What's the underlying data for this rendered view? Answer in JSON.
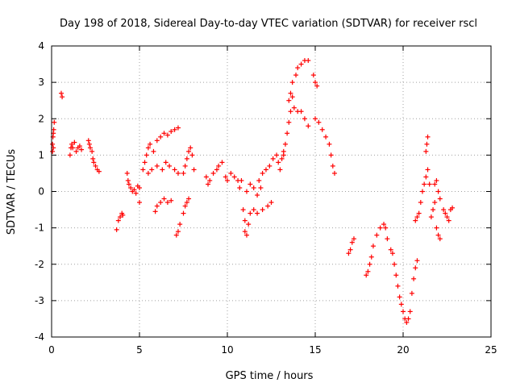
{
  "chart_data": {
    "type": "scatter",
    "title": "Day 198 of 2018, Sidereal Day-to-day VTEC variation (SDTVAR) for receiver rscl",
    "xlabel": "GPS time / hours",
    "ylabel": "SDTVAR / TECUs",
    "xlim": [
      0,
      25
    ],
    "ylim": [
      -4,
      4
    ],
    "xticks": [
      0,
      5,
      10,
      15,
      20,
      25
    ],
    "yticks": [
      -4,
      -3,
      -2,
      -1,
      0,
      1,
      2,
      3,
      4
    ],
    "grid": true,
    "marker": "+",
    "series": [
      {
        "name": "SDTVAR",
        "color": "#ff0000",
        "points": [
          [
            0.05,
            1.1
          ],
          [
            0.05,
            1.3
          ],
          [
            0.08,
            1.5
          ],
          [
            0.1,
            1.6
          ],
          [
            0.12,
            1.7
          ],
          [
            0.15,
            1.9
          ],
          [
            0.1,
            1.2
          ],
          [
            0.55,
            2.7
          ],
          [
            0.6,
            2.6
          ],
          [
            1.05,
            1.0
          ],
          [
            1.1,
            1.2
          ],
          [
            1.15,
            1.3
          ],
          [
            1.2,
            1.2
          ],
          [
            1.3,
            1.35
          ],
          [
            1.4,
            1.1
          ],
          [
            1.5,
            1.2
          ],
          [
            1.6,
            1.25
          ],
          [
            1.7,
            1.15
          ],
          [
            2.1,
            1.4
          ],
          [
            2.15,
            1.3
          ],
          [
            2.2,
            1.2
          ],
          [
            2.3,
            1.1
          ],
          [
            2.35,
            0.9
          ],
          [
            2.4,
            0.8
          ],
          [
            2.5,
            0.7
          ],
          [
            2.6,
            0.6
          ],
          [
            2.7,
            0.55
          ],
          [
            3.7,
            -1.05
          ],
          [
            3.8,
            -0.8
          ],
          [
            3.9,
            -0.7
          ],
          [
            4.0,
            -0.6
          ],
          [
            4.05,
            -0.65
          ],
          [
            4.3,
            0.5
          ],
          [
            4.35,
            0.3
          ],
          [
            4.4,
            0.2
          ],
          [
            4.5,
            0.1
          ],
          [
            4.6,
            0.0
          ],
          [
            4.7,
            0.05
          ],
          [
            4.8,
            -0.05
          ],
          [
            4.9,
            0.15
          ],
          [
            5.0,
            0.1
          ],
          [
            5.0,
            -0.3
          ],
          [
            5.2,
            0.6
          ],
          [
            5.3,
            0.8
          ],
          [
            5.4,
            1.0
          ],
          [
            5.5,
            1.2
          ],
          [
            5.6,
            1.3
          ],
          [
            5.8,
            1.1
          ],
          [
            6.0,
            1.4
          ],
          [
            6.2,
            1.5
          ],
          [
            6.4,
            1.6
          ],
          [
            6.6,
            1.55
          ],
          [
            6.8,
            1.65
          ],
          [
            7.0,
            1.7
          ],
          [
            7.2,
            1.75
          ],
          [
            5.5,
            0.5
          ],
          [
            5.7,
            0.6
          ],
          [
            6.0,
            0.7
          ],
          [
            6.3,
            0.6
          ],
          [
            6.5,
            0.8
          ],
          [
            6.7,
            0.7
          ],
          [
            7.0,
            0.6
          ],
          [
            7.2,
            0.5
          ],
          [
            5.9,
            -0.55
          ],
          [
            6.0,
            -0.4
          ],
          [
            6.2,
            -0.3
          ],
          [
            6.4,
            -0.2
          ],
          [
            6.6,
            -0.3
          ],
          [
            6.8,
            -0.25
          ],
          [
            7.1,
            -1.2
          ],
          [
            7.2,
            -1.1
          ],
          [
            7.3,
            -0.9
          ],
          [
            7.5,
            -0.6
          ],
          [
            7.6,
            -0.4
          ],
          [
            7.7,
            -0.3
          ],
          [
            7.8,
            -0.2
          ],
          [
            7.5,
            0.5
          ],
          [
            7.6,
            0.7
          ],
          [
            7.7,
            0.9
          ],
          [
            7.8,
            1.1
          ],
          [
            7.9,
            1.2
          ],
          [
            8.0,
            1.0
          ],
          [
            8.1,
            0.6
          ],
          [
            8.8,
            0.4
          ],
          [
            8.9,
            0.2
          ],
          [
            9.0,
            0.3
          ],
          [
            9.2,
            0.5
          ],
          [
            9.4,
            0.6
          ],
          [
            9.5,
            0.7
          ],
          [
            9.7,
            0.8
          ],
          [
            9.9,
            0.4
          ],
          [
            10.0,
            0.3
          ],
          [
            10.2,
            0.5
          ],
          [
            10.4,
            0.4
          ],
          [
            10.6,
            0.3
          ],
          [
            10.7,
            0.1
          ],
          [
            10.8,
            0.3
          ],
          [
            10.9,
            -0.5
          ],
          [
            11.0,
            -0.8
          ],
          [
            11.0,
            -1.1
          ],
          [
            11.1,
            -1.2
          ],
          [
            11.2,
            -0.9
          ],
          [
            11.3,
            -0.6
          ],
          [
            11.5,
            -0.5
          ],
          [
            11.7,
            -0.6
          ],
          [
            12.0,
            -0.5
          ],
          [
            12.3,
            -0.4
          ],
          [
            12.5,
            -0.3
          ],
          [
            11.1,
            0.0
          ],
          [
            11.3,
            0.2
          ],
          [
            11.5,
            0.1
          ],
          [
            11.7,
            -0.1
          ],
          [
            11.9,
            0.1
          ],
          [
            11.8,
            0.3
          ],
          [
            12.0,
            0.5
          ],
          [
            12.2,
            0.6
          ],
          [
            12.4,
            0.7
          ],
          [
            12.6,
            0.9
          ],
          [
            12.8,
            1.0
          ],
          [
            12.9,
            0.8
          ],
          [
            13.0,
            0.6
          ],
          [
            13.1,
            0.9
          ],
          [
            13.2,
            1.1
          ],
          [
            13.3,
            1.3
          ],
          [
            13.2,
            1.0
          ],
          [
            13.5,
            2.5
          ],
          [
            13.6,
            2.7
          ],
          [
            13.7,
            2.6
          ],
          [
            13.8,
            2.3
          ],
          [
            14.0,
            2.2
          ],
          [
            14.2,
            2.2
          ],
          [
            14.4,
            2.0
          ],
          [
            14.6,
            1.8
          ],
          [
            13.4,
            1.6
          ],
          [
            13.5,
            1.9
          ],
          [
            13.6,
            2.2
          ],
          [
            13.7,
            3.0
          ],
          [
            13.9,
            3.2
          ],
          [
            14.0,
            3.4
          ],
          [
            14.2,
            3.5
          ],
          [
            14.4,
            3.6
          ],
          [
            14.6,
            3.6
          ],
          [
            14.9,
            3.2
          ],
          [
            15.0,
            3.0
          ],
          [
            15.1,
            2.9
          ],
          [
            15.0,
            2.0
          ],
          [
            15.2,
            1.9
          ],
          [
            15.4,
            1.7
          ],
          [
            15.6,
            1.5
          ],
          [
            15.8,
            1.3
          ],
          [
            15.9,
            1.0
          ],
          [
            16.0,
            0.7
          ],
          [
            16.1,
            0.5
          ],
          [
            16.9,
            -1.7
          ],
          [
            17.0,
            -1.6
          ],
          [
            17.1,
            -1.4
          ],
          [
            17.2,
            -1.3
          ],
          [
            17.9,
            -2.3
          ],
          [
            18.0,
            -2.2
          ],
          [
            18.1,
            -2.0
          ],
          [
            18.2,
            -1.8
          ],
          [
            18.3,
            -1.5
          ],
          [
            18.5,
            -1.2
          ],
          [
            18.7,
            -1.0
          ],
          [
            18.9,
            -0.9
          ],
          [
            19.0,
            -1.0
          ],
          [
            19.1,
            -1.3
          ],
          [
            19.3,
            -1.6
          ],
          [
            19.4,
            -1.7
          ],
          [
            19.5,
            -2.0
          ],
          [
            19.6,
            -2.3
          ],
          [
            19.7,
            -2.6
          ],
          [
            19.8,
            -2.9
          ],
          [
            19.9,
            -3.1
          ],
          [
            20.0,
            -3.3
          ],
          [
            20.1,
            -3.5
          ],
          [
            20.2,
            -3.6
          ],
          [
            20.3,
            -3.5
          ],
          [
            20.4,
            -3.3
          ],
          [
            20.5,
            -2.8
          ],
          [
            20.6,
            -2.4
          ],
          [
            20.7,
            -2.1
          ],
          [
            20.8,
            -1.9
          ],
          [
            20.7,
            -0.8
          ],
          [
            20.8,
            -0.7
          ],
          [
            20.9,
            -0.6
          ],
          [
            21.0,
            -0.3
          ],
          [
            21.1,
            0.0
          ],
          [
            21.2,
            0.2
          ],
          [
            21.3,
            0.4
          ],
          [
            21.4,
            0.6
          ],
          [
            21.5,
            0.2
          ],
          [
            21.3,
            1.1
          ],
          [
            21.35,
            1.3
          ],
          [
            21.4,
            1.5
          ],
          [
            21.6,
            -0.7
          ],
          [
            21.7,
            -0.5
          ],
          [
            21.8,
            -0.3
          ],
          [
            21.8,
            0.2
          ],
          [
            21.9,
            0.3
          ],
          [
            22.0,
            0.0
          ],
          [
            22.1,
            -0.2
          ],
          [
            21.9,
            -1.0
          ],
          [
            22.0,
            -1.2
          ],
          [
            22.1,
            -1.3
          ],
          [
            22.3,
            -0.5
          ],
          [
            22.4,
            -0.6
          ],
          [
            22.5,
            -0.7
          ],
          [
            22.6,
            -0.8
          ],
          [
            22.7,
            -0.5
          ],
          [
            22.8,
            -0.45
          ]
        ]
      }
    ]
  }
}
